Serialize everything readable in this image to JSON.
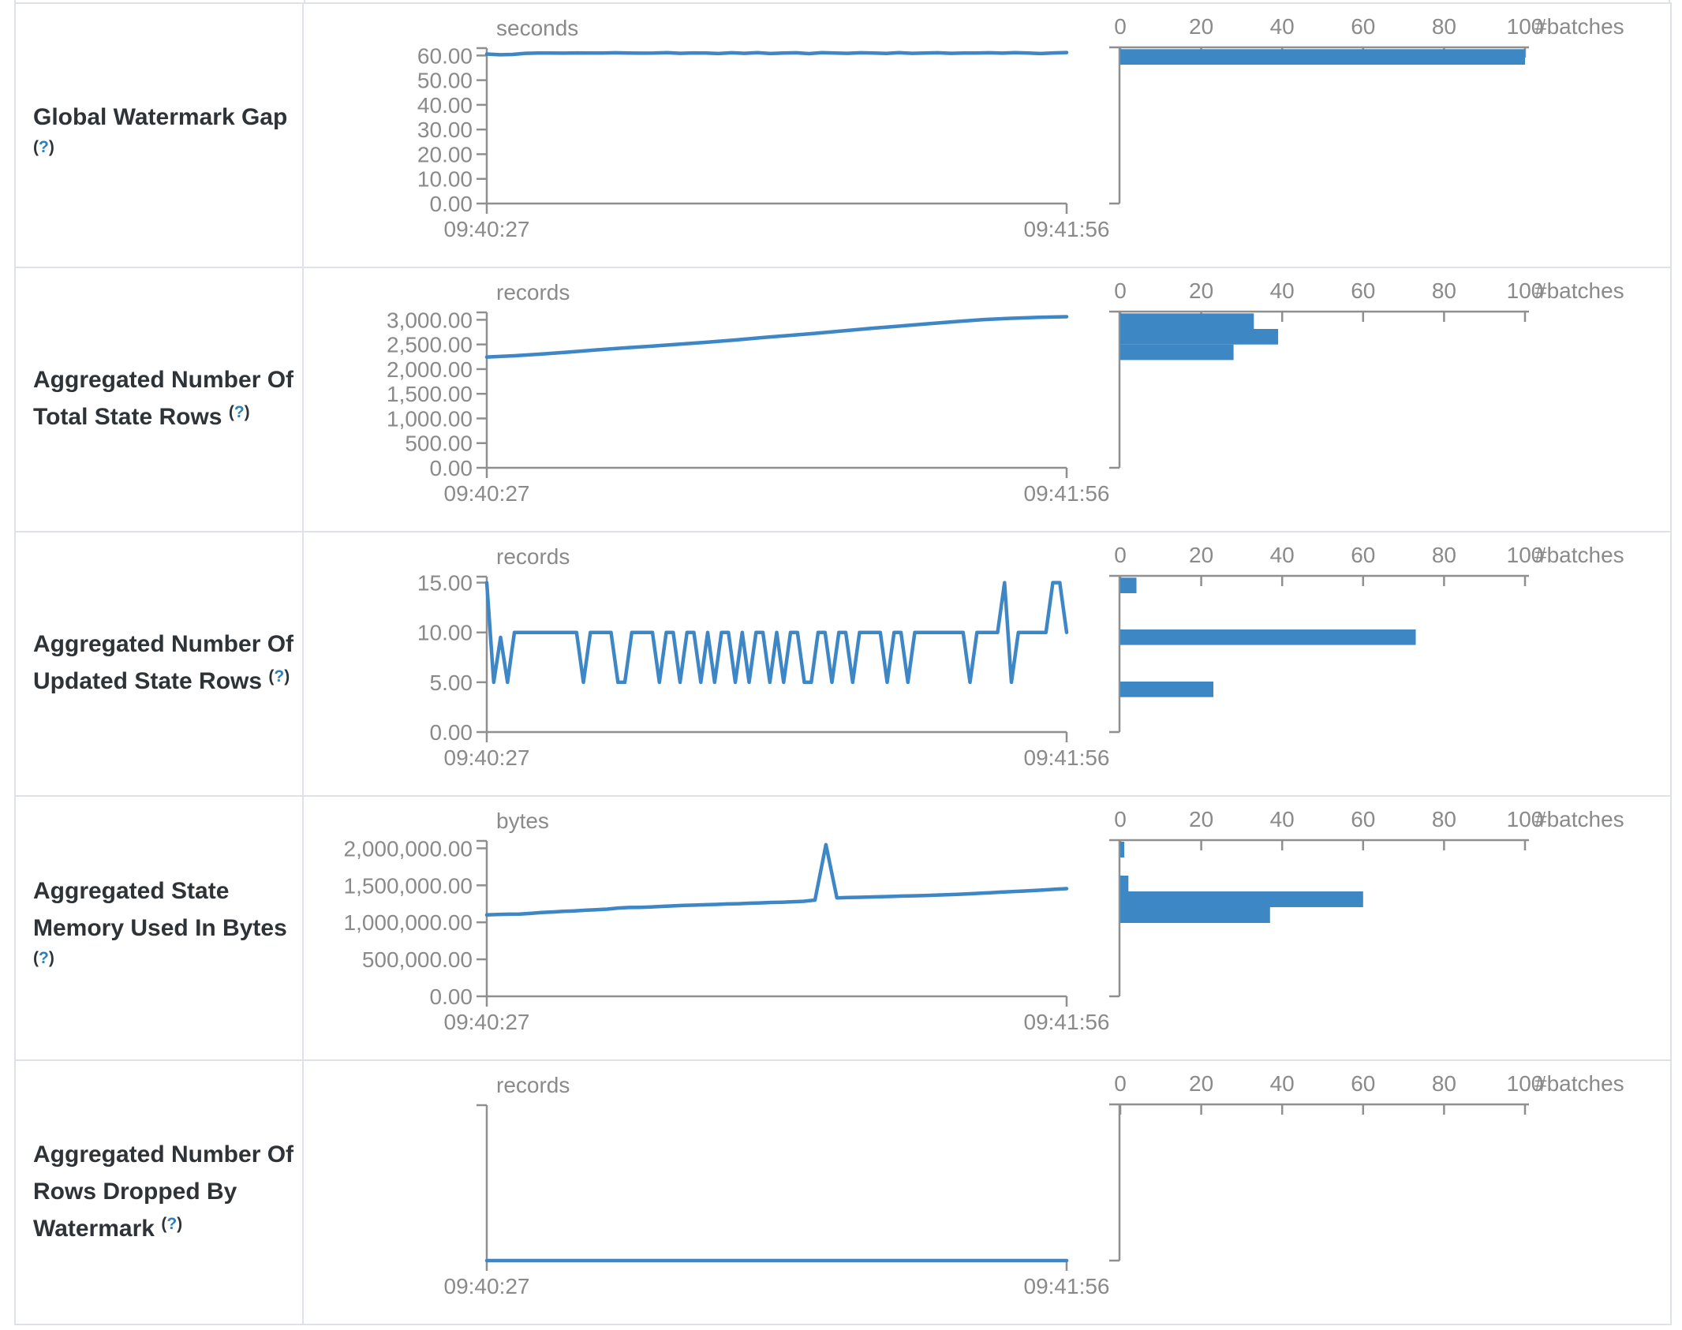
{
  "colors": {
    "line": "#3d87c7",
    "bar": "#3d87c5",
    "axis": "#8f8f8f",
    "tick_text": "#8a8a8a",
    "label_text": "#2e3338",
    "help_q": "#2c7fba",
    "border": "#dee2e6"
  },
  "table": {
    "help": {
      "open": "(",
      "q": "?",
      "close": ")"
    },
    "rows": [
      {
        "label": "Global Watermark Gap",
        "help_inline": false
      },
      {
        "label": "Aggregated Number Of Total State Rows",
        "help_inline": true
      },
      {
        "label": "Aggregated Number Of Updated State Rows",
        "help_inline": true
      },
      {
        "label": "Aggregated State Memory Used In Bytes",
        "help_inline": false
      },
      {
        "label": "Aggregated Number Of Rows Dropped By Watermark",
        "help_inline": true
      }
    ]
  },
  "chart_data": [
    {
      "type": "line",
      "metric": "Global Watermark Gap",
      "title": "seconds",
      "x_start": "09:40:27",
      "x_end": "09:41:56",
      "plot_max": 63,
      "y_ticks": [
        {
          "label": "60.00",
          "value": 60
        },
        {
          "label": "50.00",
          "value": 50
        },
        {
          "label": "40.00",
          "value": 40
        },
        {
          "label": "30.00",
          "value": 30
        },
        {
          "label": "20.00",
          "value": 20
        },
        {
          "label": "10.00",
          "value": 10
        },
        {
          "label": "0.00",
          "value": 0
        }
      ],
      "values": [
        60.6,
        60.3,
        60.45,
        60.9,
        61.0,
        61.0,
        60.95,
        61.05,
        61.0,
        61.0,
        61.1,
        61.0,
        60.95,
        61.0,
        61.15,
        60.9,
        61.05,
        61.0,
        60.8,
        61.1,
        60.9,
        61.15,
        60.8,
        61.0,
        61.1,
        60.75,
        61.15,
        61.0,
        60.9,
        61.1,
        61.0,
        60.85,
        61.15,
        60.9,
        61.0,
        61.1,
        60.9,
        61.0,
        61.0,
        61.1,
        60.95,
        61.15,
        61.0,
        60.8,
        61.05,
        61.2
      ],
      "histogram": {
        "type": "bar",
        "x_ticks": [
          0,
          20,
          40,
          60,
          80,
          100
        ],
        "x_label": "#batches",
        "x_max": 100,
        "bucket_size": 6.3,
        "bars": [
          {
            "bucket_top": 62.6,
            "count": 100
          }
        ]
      }
    },
    {
      "type": "line",
      "metric": "Aggregated Number Of Total State Rows",
      "title": "records",
      "x_start": "09:40:27",
      "x_end": "09:41:56",
      "plot_max": 3150,
      "y_ticks": [
        {
          "label": "3,000.00",
          "value": 3000
        },
        {
          "label": "2,500.00",
          "value": 2500
        },
        {
          "label": "2,000.00",
          "value": 2000
        },
        {
          "label": "1,500.00",
          "value": 1500
        },
        {
          "label": "1,000.00",
          "value": 1000
        },
        {
          "label": "500.00",
          "value": 500
        },
        {
          "label": "0.00",
          "value": 0
        }
      ],
      "values": [
        2245,
        2270,
        2305,
        2345,
        2390,
        2430,
        2465,
        2505,
        2545,
        2590,
        2640,
        2685,
        2730,
        2780,
        2830,
        2875,
        2920,
        2965,
        3005,
        3030,
        3050,
        3062
      ],
      "histogram": {
        "type": "bar",
        "x_ticks": [
          0,
          20,
          40,
          60,
          80,
          100
        ],
        "x_label": "#batches",
        "x_max": 100,
        "bucket_size": 315,
        "bars": [
          {
            "bucket_top": 3130,
            "count": 33
          },
          {
            "bucket_top": 2815,
            "count": 39
          },
          {
            "bucket_top": 2500,
            "count": 28
          }
        ]
      }
    },
    {
      "type": "line",
      "metric": "Aggregated Number Of Updated State Rows",
      "title": "records",
      "x_start": "09:40:27",
      "x_end": "09:41:56",
      "plot_max": 15.6,
      "y_ticks": [
        {
          "label": "15.00",
          "value": 15
        },
        {
          "label": "10.00",
          "value": 10
        },
        {
          "label": "5.00",
          "value": 5
        },
        {
          "label": "0.00",
          "value": 0
        }
      ],
      "values": [
        15,
        5,
        9.5,
        5,
        10,
        10,
        10,
        10,
        10,
        10,
        10,
        10,
        10,
        10,
        5,
        10,
        10,
        10,
        10,
        5,
        5,
        10,
        10,
        10,
        10,
        5,
        10,
        10,
        5,
        10,
        10,
        5,
        10,
        5,
        10,
        10,
        5,
        10,
        5,
        10,
        10,
        5,
        10,
        5,
        10,
        10,
        5,
        5,
        10,
        10,
        5,
        10,
        10,
        5,
        10,
        10,
        10,
        10,
        5,
        10,
        10,
        5,
        10,
        10,
        10,
        10,
        10,
        10,
        10,
        10,
        5,
        10,
        10,
        10,
        10,
        15,
        5,
        10,
        10,
        10,
        10,
        10,
        15,
        15,
        10
      ],
      "histogram": {
        "type": "bar",
        "x_ticks": [
          0,
          20,
          40,
          60,
          80,
          100
        ],
        "x_label": "#batches",
        "x_max": 100,
        "bucket_size": 1.56,
        "bars": [
          {
            "bucket_top": 15.5,
            "count": 4
          },
          {
            "bucket_top": 10.3,
            "count": 73
          },
          {
            "bucket_top": 5.07,
            "count": 23
          }
        ]
      }
    },
    {
      "type": "line",
      "metric": "Aggregated State Memory Used In Bytes",
      "title": "bytes",
      "x_start": "09:40:27",
      "x_end": "09:41:56",
      "plot_max": 2100000,
      "y_ticks": [
        {
          "label": "2,000,000.00",
          "value": 2000000
        },
        {
          "label": "1,500,000.00",
          "value": 1500000
        },
        {
          "label": "1,000,000.00",
          "value": 1000000
        },
        {
          "label": "500,000.00",
          "value": 500000
        },
        {
          "label": "0.00",
          "value": 0
        }
      ],
      "values": [
        1100000,
        1105000,
        1110000,
        1112000,
        1120000,
        1132000,
        1140000,
        1148000,
        1155000,
        1163000,
        1170000,
        1178000,
        1193000,
        1200000,
        1202000,
        1208000,
        1215000,
        1222000,
        1228000,
        1232000,
        1238000,
        1242000,
        1248000,
        1252000,
        1258000,
        1262000,
        1268000,
        1272000,
        1278000,
        1285000,
        1300000,
        2050000,
        1330000,
        1335000,
        1338000,
        1342000,
        1345000,
        1350000,
        1355000,
        1358000,
        1362000,
        1368000,
        1372000,
        1378000,
        1385000,
        1392000,
        1400000,
        1408000,
        1415000,
        1422000,
        1430000,
        1438000,
        1448000,
        1455000
      ],
      "histogram": {
        "type": "bar",
        "x_ticks": [
          0,
          20,
          40,
          60,
          80,
          100
        ],
        "x_label": "#batches",
        "x_max": 100,
        "bucket_size": 213000,
        "bars": [
          {
            "bucket_top": 2089000,
            "count": 1
          },
          {
            "bucket_top": 1631000,
            "count": 2
          },
          {
            "bucket_top": 1418000,
            "count": 60
          },
          {
            "bucket_top": 1205000,
            "count": 37
          }
        ]
      }
    },
    {
      "type": "line",
      "metric": "Aggregated Number Of Rows Dropped By Watermark",
      "title": "records",
      "x_start": "09:40:27",
      "x_end": "09:41:56",
      "plot_max": 1,
      "y_ticks": [],
      "values": [
        0,
        0,
        0,
        0,
        0,
        0,
        0,
        0,
        0,
        0
      ],
      "histogram": {
        "type": "bar",
        "x_ticks": [
          0,
          20,
          40,
          60,
          80,
          100
        ],
        "x_label": "#batches",
        "x_max": 100,
        "bucket_size": 1,
        "bars": []
      }
    }
  ]
}
